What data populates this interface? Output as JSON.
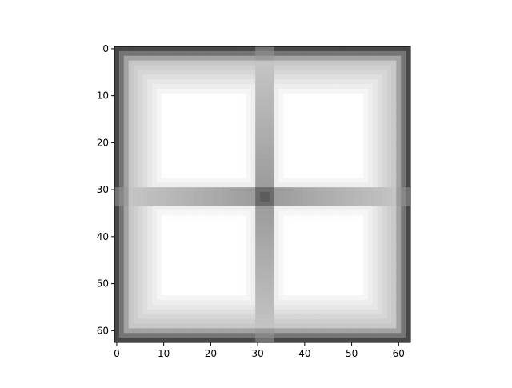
{
  "chart_data": {
    "type": "heatmap",
    "colormap": "gray",
    "grid": false,
    "shape": [
      63,
      63
    ],
    "xlim": [
      -0.5,
      62.5
    ],
    "ylim": [
      62.5,
      -0.5
    ],
    "x_ticks": [
      "0",
      "10",
      "20",
      "30",
      "40",
      "50",
      "60"
    ],
    "y_ticks": [
      "0",
      "10",
      "20",
      "30",
      "40",
      "50",
      "60"
    ],
    "x_tick_values": [
      0,
      10,
      20,
      30,
      40,
      50,
      60
    ],
    "y_tick_values": [
      0,
      10,
      20,
      30,
      40,
      50,
      60
    ],
    "center": [
      31.5,
      31.5
    ],
    "cross_band_rows": [
      30,
      33
    ],
    "cross_band_cols": [
      30,
      33
    ],
    "description_values": {
      "edge_min_intensity": 0.25,
      "quadrant_max_intensity": 1.0,
      "band_intensity": 0.62,
      "center_intensity": 0.33
    }
  }
}
